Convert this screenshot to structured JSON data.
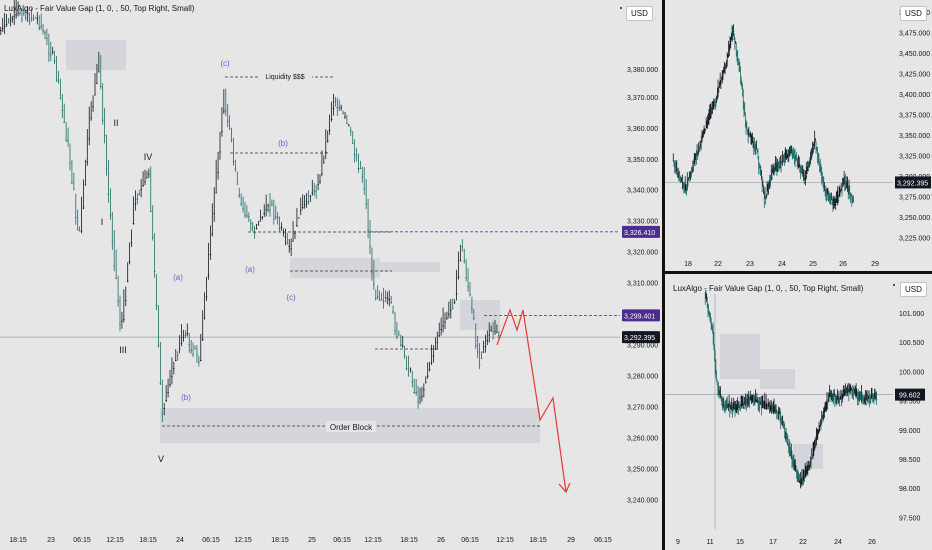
{
  "main": {
    "indicator": "LuxAlgo - Fair Value Gap (1, 0, , 50, Top Right, Small)",
    "currency": "USD",
    "ylim": [
      3233,
      3400
    ],
    "price_ticks": [
      "3,370.000",
      "3,360.000",
      "3,350.000",
      "3,340.000",
      "3,330.000",
      "3,320.000",
      "3,310.000",
      "3,290.000",
      "3,280.000",
      "3,270.000",
      "3,260.000",
      "3,250.000",
      "3,240.000"
    ],
    "price_tick_values": [
      3370,
      3360,
      3350,
      3340,
      3330,
      3320,
      3310,
      3290,
      3280,
      3270,
      3260,
      3250,
      3240
    ],
    "price_top_tick": "3,380.000",
    "time_ticks": [
      "18:15",
      "23",
      "06:15",
      "12:15",
      "18:15",
      "24",
      "06:15",
      "12:15",
      "18:15",
      "25",
      "06:15",
      "12:15",
      "18:15",
      "26",
      "06:15",
      "12:15",
      "18:15",
      "29",
      "06:15"
    ],
    "tags": [
      {
        "text": "3,326.410",
        "value": 3326.41,
        "bg": "#4a2d8f"
      },
      {
        "text": "3,299.401",
        "value": 3299.401,
        "bg": "#4a2d8f"
      },
      {
        "text": "3,292.395",
        "value": 3292.395,
        "bg": "#131722"
      }
    ],
    "labels": {
      "wave_c1": "(c)",
      "wave_b1": "(b)",
      "wave_a1": "(a)",
      "wave_c2": "(c)",
      "wave_a2": "(a)",
      "wave_b2": "(b)",
      "II": "II",
      "IV": "IV",
      "I": "I",
      "III": "III",
      "V": "V",
      "liquidity": "Liquidity $$$",
      "order_block": "Order Block"
    },
    "colors": {
      "bull": "#1e6f66",
      "bear": "#131722",
      "projection": "#e53935",
      "level": "#5b3fb0",
      "wave_label": "#6c5fc7"
    }
  },
  "top_right": {
    "currency": "USD",
    "ylim": [
      3210,
      3510
    ],
    "price_ticks": [
      "3,500.000",
      "3,475.000",
      "3,450.000",
      "3,425.000",
      "3,400.000",
      "3,375.000",
      "3,350.000",
      "3,325.000",
      "3,300.000",
      "3,275.000",
      "3,250.000",
      "3,225.000"
    ],
    "price_tick_values": [
      3500,
      3475,
      3450,
      3425,
      3400,
      3375,
      3350,
      3325,
      3300,
      3275,
      3250,
      3225
    ],
    "time_ticks": [
      "18",
      "22",
      "23",
      "24",
      "25",
      "26",
      "29"
    ],
    "last_price": "3,292.395"
  },
  "bottom_right": {
    "indicator": "LuxAlgo - Fair Value Gap (1, 0, , 50, Top Right, Small)",
    "currency": "USD",
    "ylim": [
      97.3,
      101.6
    ],
    "price_ticks": [
      "101.000",
      "100.500",
      "100.000",
      "99.500",
      "99.000",
      "98.500",
      "98.000",
      "97.500"
    ],
    "price_tick_values": [
      101,
      100.5,
      100,
      99.5,
      99,
      98.5,
      98,
      97.5
    ],
    "time_ticks": [
      "9",
      "11",
      "15",
      "17",
      "22",
      "24",
      "26"
    ],
    "last_price": "99.602"
  }
}
